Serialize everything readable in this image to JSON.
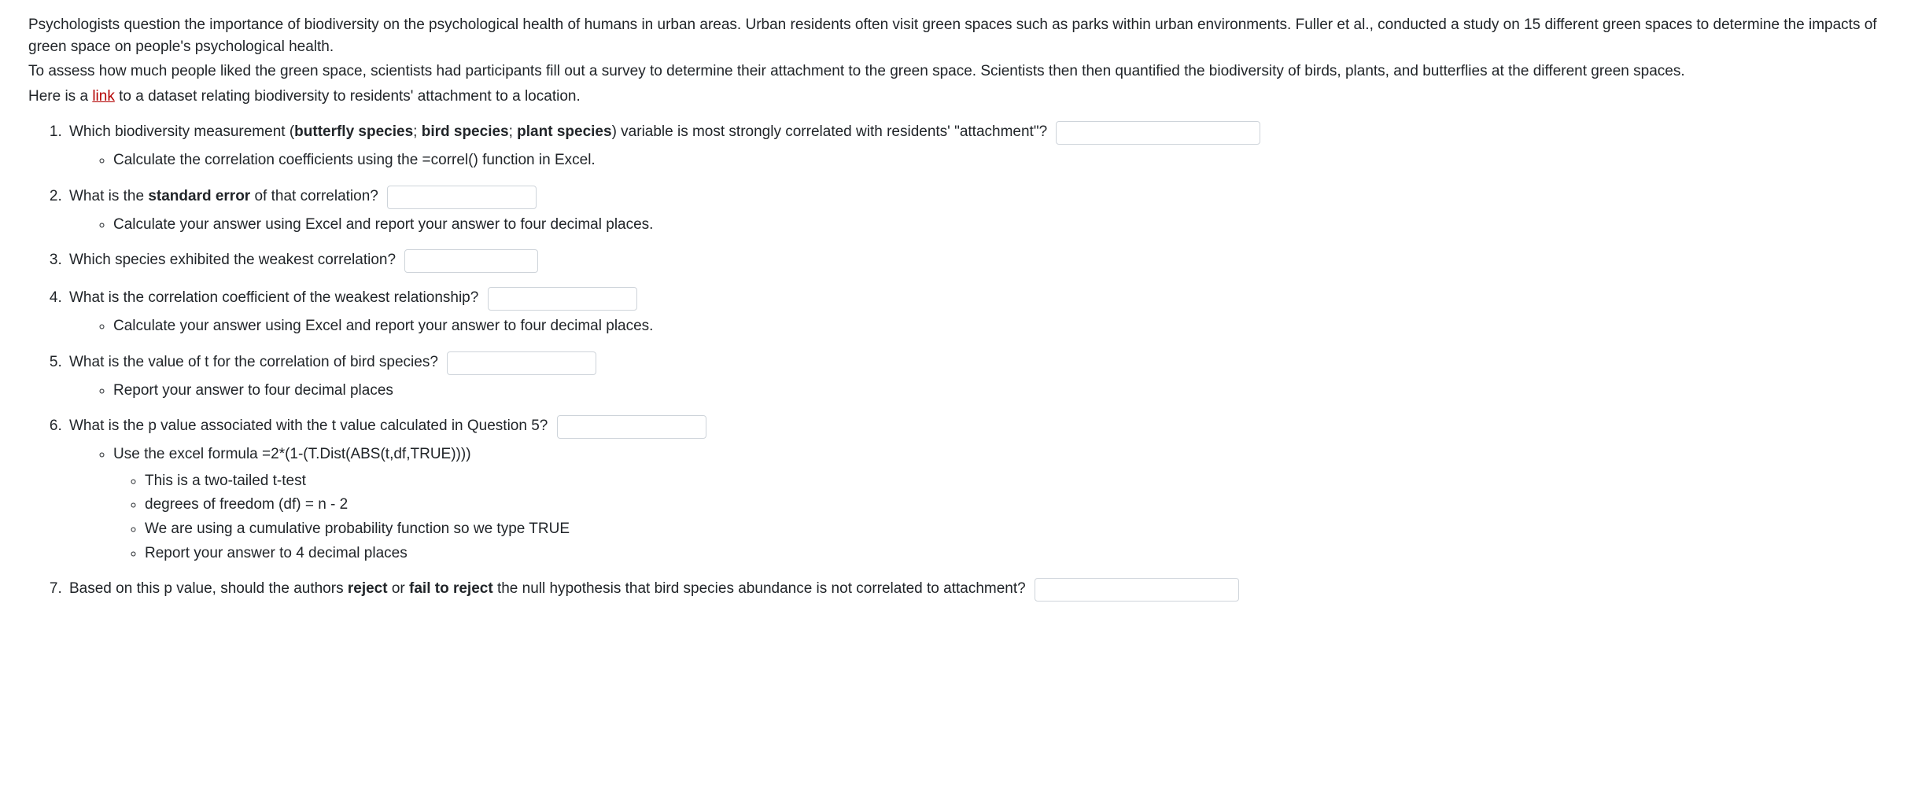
{
  "intro": {
    "p1": "Psychologists question the importance of biodiversity on the psychological health of humans in urban areas. Urban residents often visit green spaces such as parks within urban environments. Fuller et al., conducted a study on 15 different green spaces to determine the impacts of green space on people's psychological health.",
    "p2": "To assess how much people liked the green space, scientists had participants fill out a survey to determine their attachment to the green space. Scientists then then quantified the biodiversity of birds, plants, and butterflies at the different green spaces.",
    "p3_pre": "Here is a ",
    "p3_link": "link",
    "p3_post": " to a dataset relating biodiversity to residents' attachment to a location."
  },
  "q1": {
    "pre": "Which biodiversity measurement (",
    "b1": "butterfly species",
    "sep1": "; ",
    "b2": "bird species",
    "sep2": "; ",
    "b3": "plant species",
    "post": ") variable is most strongly correlated with residents' \"attachment\"?",
    "sub1": "Calculate the correlation coefficients using the =correl() function in Excel."
  },
  "q2": {
    "pre": "What is the ",
    "b1": "standard error",
    "post": " of that correlation?",
    "sub1": "Calculate your answer using Excel and report your answer to four decimal places."
  },
  "q3": {
    "text": "Which species exhibited the weakest correlation?"
  },
  "q4": {
    "text": "What is the correlation coefficient of the weakest relationship?",
    "sub1": "Calculate your answer using Excel and report your answer to four decimal places."
  },
  "q5": {
    "text": "What is the value of t for the correlation of bird species?",
    "sub1": "Report your answer to four decimal places"
  },
  "q6": {
    "text": "What is the p value associated with the t value calculated in Question 5?",
    "sub1": "Use the excel formula =2*(1-(T.Dist(ABS(t,df,TRUE))))",
    "sub1a": "This is a two-tailed t-test",
    "sub1b": "degrees of freedom (df) = n - 2",
    "sub1c": "We are using a cumulative probability function so we type TRUE",
    "sub1d": "Report your answer to 4 decimal places"
  },
  "q7": {
    "pre": "Based on this p value, should the authors ",
    "b1": "reject",
    "mid": " or ",
    "b2": "fail to reject",
    "post": " the null hypothesis that bird species abundance is not correlated to attachment?"
  }
}
